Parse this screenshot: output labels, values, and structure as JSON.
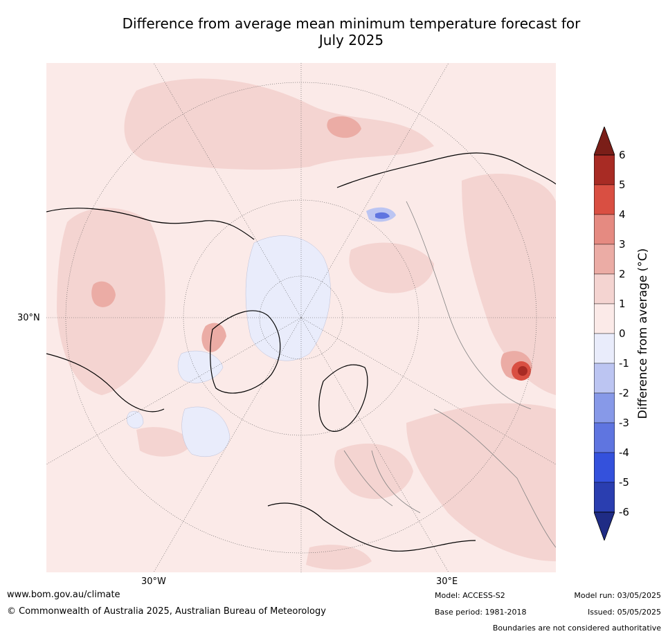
{
  "title_line1": "Difference from average mean minimum temperature forecast for",
  "title_line2": "July 2025",
  "map": {
    "projection": "north-polar-stereographic",
    "colors": {
      "background": "#fbeae8",
      "land_0_1": "#fbeae8",
      "anom_1_2": "#f4d4d1",
      "anom_2_3": "#ebaca5",
      "anom_3_4": "#e58a81",
      "anom_4_5": "#d94f42",
      "anom_5_6": "#a82b24",
      "anom_neg_0_1": "#e9ecfb",
      "anom_neg_1_2": "#bcc5f2",
      "anom_neg_2_3": "#8799e8",
      "coastline": "#000000",
      "borders": "#808080",
      "graticule": "#555555"
    },
    "tick_labels": {
      "lat_30N": "30°N",
      "lon_30W": "30°W",
      "lon_30E": "30°E"
    }
  },
  "colorbar": {
    "title": "Difference from average (°C)",
    "levels": [
      "6",
      "5",
      "4",
      "3",
      "2",
      "1",
      "0",
      "-1",
      "-2",
      "-3",
      "-4",
      "-5",
      "-6"
    ],
    "colors": [
      "#a82b24",
      "#d94f42",
      "#e58a81",
      "#ebaca5",
      "#f4d4d1",
      "#fbeae8",
      "#e9ecfb",
      "#bcc5f2",
      "#8799e8",
      "#5f75e0",
      "#3451dc",
      "#2a3eb0"
    ],
    "over_color": "#7a1e18",
    "under_color": "#1f2c85"
  },
  "footer": {
    "website": "www.bom.gov.au/climate",
    "copyright": "© Commonwealth of Australia 2025, Australian Bureau of Meteorology",
    "model": "Model: ACCESS-S2",
    "base_period": "Base period: 1981-2018",
    "model_run": "Model run: 03/05/2025",
    "issued": "Issued: 05/05/2025",
    "disclaimer": "Boundaries are not considered authoritative"
  }
}
